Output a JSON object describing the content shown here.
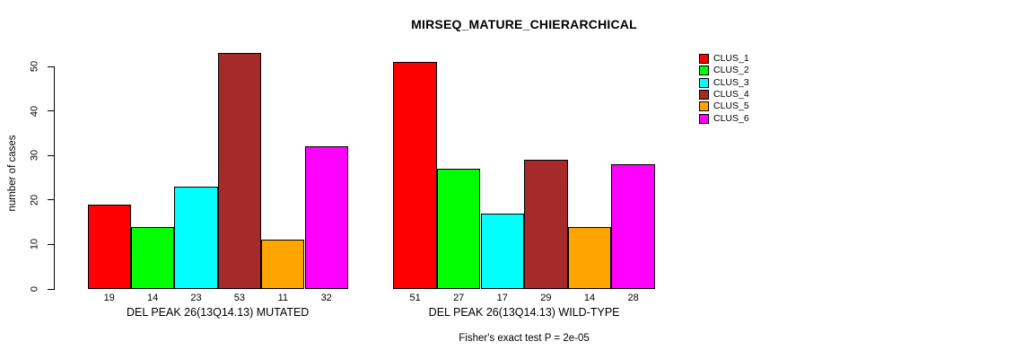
{
  "chart_data": {
    "type": "bar",
    "title": "MIRSEQ_MATURE_CHIERARCHICAL",
    "ylabel": "number of cases",
    "xlabel": "",
    "ylim": [
      0,
      55
    ],
    "yticks": [
      0,
      10,
      20,
      30,
      40,
      50
    ],
    "grid": false,
    "legend_position": "right",
    "bar_outline_color": "#000000",
    "background_color": "#ffffff",
    "series": [
      {
        "name": "CLUS_1",
        "color": "#FF0000"
      },
      {
        "name": "CLUS_2",
        "color": "#00FF00"
      },
      {
        "name": "CLUS_3",
        "color": "#00FFFF"
      },
      {
        "name": "CLUS_4",
        "color": "#A52A2A"
      },
      {
        "name": "CLUS_5",
        "color": "#FFA500"
      },
      {
        "name": "CLUS_6",
        "color": "#FF00FF"
      }
    ],
    "groups": [
      {
        "label": "DEL PEAK 26(13Q14.13) MUTATED",
        "values": [
          19,
          14,
          23,
          53,
          11,
          32
        ]
      },
      {
        "label": "DEL PEAK 26(13Q14.13) WILD-TYPE",
        "values": [
          51,
          27,
          17,
          29,
          14,
          28
        ]
      }
    ],
    "value_labels_shown": true,
    "annotation": "Fisher's exact test P = 2e-05"
  }
}
